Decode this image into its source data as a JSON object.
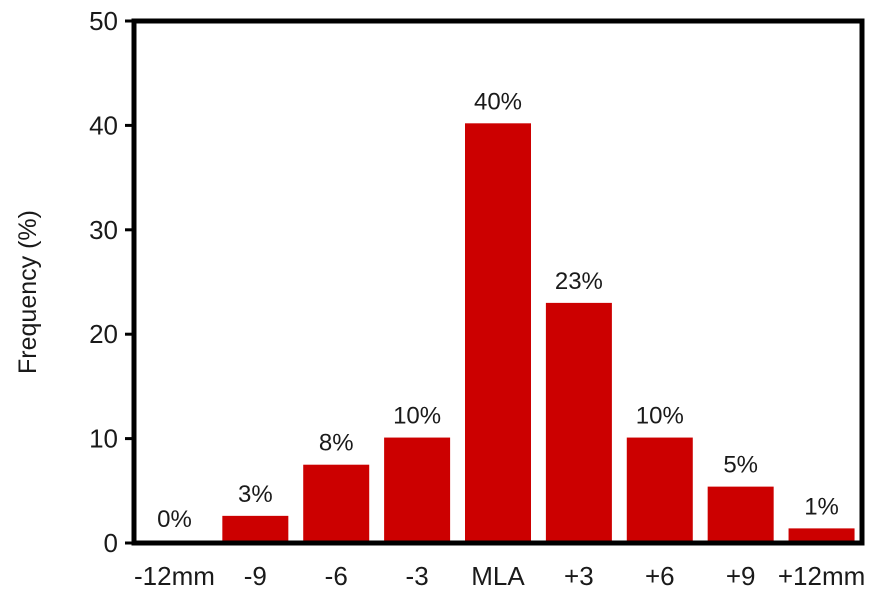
{
  "chart_data": {
    "type": "bar",
    "categories": [
      "-12mm",
      "-9",
      "-6",
      "-3",
      "MLA",
      "+3",
      "+6",
      "+9",
      "+12mm"
    ],
    "values": [
      0.2,
      2.6,
      7.5,
      10.1,
      40.2,
      23.0,
      10.1,
      5.4,
      1.4
    ],
    "data_labels": [
      "0%",
      "3%",
      "8%",
      "10%",
      "40%",
      "23%",
      "10%",
      "5%",
      "1%"
    ],
    "title": "",
    "xlabel": "",
    "ylabel": "Frequency (%)",
    "ylim": [
      0,
      50
    ],
    "yticks": [
      "0",
      "10",
      "20",
      "30",
      "40",
      "50"
    ],
    "grid": false,
    "bar_color": "#cc0000"
  }
}
